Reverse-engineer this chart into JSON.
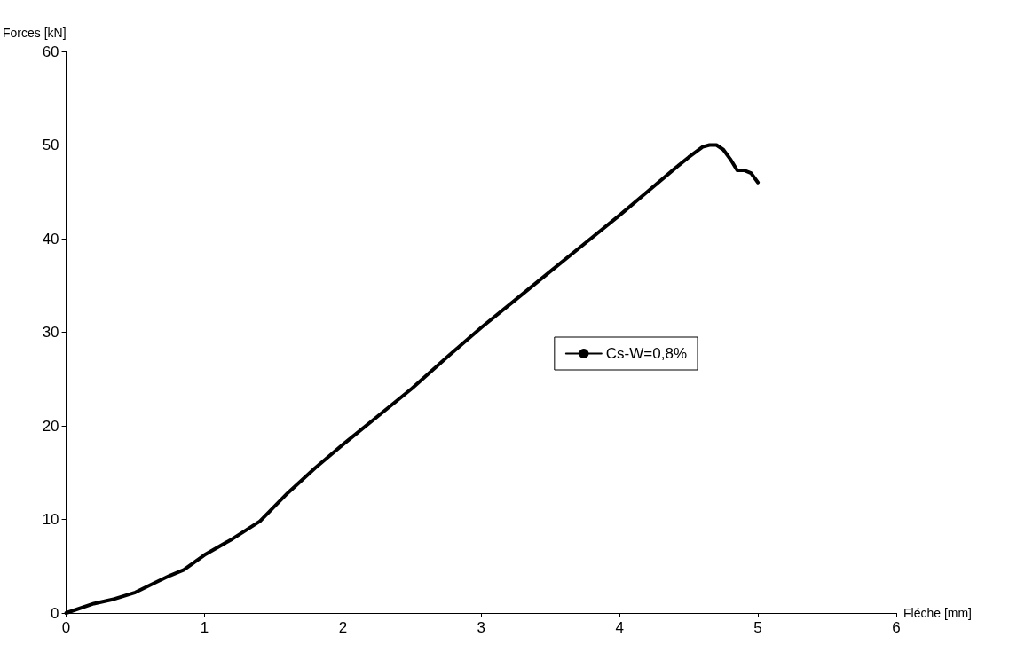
{
  "chart_data": {
    "type": "line",
    "xlabel": "Fléche [mm]",
    "ylabel": "Forces [kN]",
    "xlim": [
      0,
      6
    ],
    "xticks": [
      0,
      1,
      2,
      3,
      4,
      5,
      6
    ],
    "ylim": [
      0,
      60
    ],
    "yticks": [
      0,
      10,
      20,
      30,
      40,
      50,
      60
    ],
    "grid": false,
    "legend": "right",
    "marker": "none",
    "line_style": "solid",
    "series": [
      {
        "name": "Cs-W=0,8%",
        "color": "#000000",
        "x": [
          0,
          0.2,
          0.35,
          0.5,
          0.65,
          0.75,
          0.85,
          1,
          1.2,
          1.4,
          1.6,
          1.8,
          2,
          2.25,
          2.5,
          2.75,
          3,
          3.25,
          3.5,
          3.75,
          4,
          4.2,
          4.4,
          4.5,
          4.6,
          4.65,
          4.7,
          4.75,
          4.8,
          4.85,
          4.9,
          4.95,
          5
        ],
        "values": [
          0,
          1,
          1.5,
          2.2,
          3.3,
          4,
          4.6,
          6.2,
          7.9,
          9.8,
          12.8,
          15.5,
          18,
          21,
          24,
          27.3,
          30.5,
          33.5,
          36.5,
          39.5,
          42.5,
          45,
          47.5,
          48.7,
          49.8,
          50,
          50,
          49.5,
          48.5,
          47.3,
          47.3,
          47,
          46
        ]
      }
    ]
  }
}
